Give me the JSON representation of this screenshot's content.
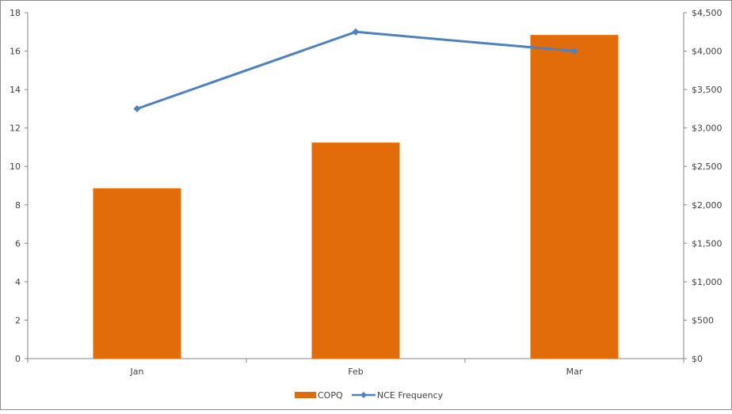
{
  "chart_data": {
    "type": "bar",
    "title": "",
    "categories": [
      "Jan",
      "Feb",
      "Mar"
    ],
    "series": [
      {
        "name": "COPQ",
        "kind": "bar",
        "axis": "right",
        "color": "#e36c0a",
        "values": [
          2215,
          2810,
          4210
        ]
      },
      {
        "name": "NCE Frequency",
        "kind": "line",
        "axis": "left",
        "color": "#4f81bd",
        "marker": "diamond",
        "values": [
          13,
          17,
          16
        ]
      }
    ],
    "left_axis": {
      "label": "",
      "min": 0,
      "max": 18,
      "step": 2,
      "ticks": [
        "0",
        "2",
        "4",
        "6",
        "8",
        "10",
        "12",
        "14",
        "16",
        "18"
      ]
    },
    "right_axis": {
      "label": "",
      "min": 0,
      "max": 4500,
      "step": 500,
      "ticks": [
        "$0",
        "$500",
        "$1,000",
        "$1,500",
        "$2,000",
        "$2,500",
        "$3,000",
        "$3,500",
        "$4,000",
        "$4,500"
      ]
    },
    "xlabel": "",
    "grid": false,
    "legend": {
      "position": "bottom",
      "entries": [
        "COPQ",
        "NCE Frequency"
      ]
    }
  }
}
